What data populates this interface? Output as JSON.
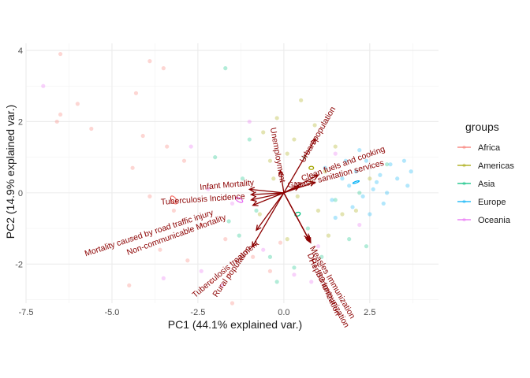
{
  "chart_data": {
    "type": "scatter",
    "subtype": "pca-biplot",
    "xlabel": "PC1 (44.1% explained var.)",
    "ylabel": "PC2 (14.9% explained var.)",
    "xlim": [
      -7.5,
      4.5
    ],
    "ylim": [
      -3.1,
      4.2
    ],
    "x_ticks": [
      -7.5,
      -5.0,
      -2.5,
      0.0,
      2.5
    ],
    "x_tick_labels": [
      "-7.5",
      "-5.0",
      "-2.5",
      "0.0",
      "2.5"
    ],
    "y_ticks": [
      -2,
      0,
      2,
      4
    ],
    "y_tick_labels": [
      "-2",
      "0",
      "2",
      "4"
    ],
    "grid": true,
    "legend": {
      "title": "groups",
      "placement": "right"
    },
    "colors": {
      "Africa": "#F8766D",
      "Americas": "#A3A500",
      "Asia": "#00BF7D",
      "Europe": "#00B0F6",
      "Oceania": "#E76BF3",
      "arrow": "#8B0000"
    },
    "series": [
      {
        "name": "Africa",
        "ellipse": {
          "cx": -3.2,
          "cy": -0.2,
          "rx": 5.8,
          "ry": 2.9,
          "angle_deg": 125
        },
        "points": [
          [
            -6.5,
            3.9
          ],
          [
            -3.9,
            3.7
          ],
          [
            -3.5,
            3.5
          ],
          [
            -6.5,
            2.2
          ],
          [
            -6.6,
            2.0
          ],
          [
            -6.0,
            2.5
          ],
          [
            -4.3,
            2.8
          ],
          [
            -5.6,
            1.8
          ],
          [
            -4.1,
            1.6
          ],
          [
            -4.4,
            0.7
          ],
          [
            -3.4,
            1.3
          ],
          [
            -2.9,
            0.9
          ],
          [
            -3.2,
            -0.5
          ],
          [
            -2.4,
            -0.9
          ],
          [
            -3.6,
            -1.6
          ],
          [
            -2.8,
            -1.9
          ],
          [
            -2.1,
            -2.5
          ],
          [
            -1.7,
            -1.3
          ],
          [
            -1.6,
            -2.3
          ],
          [
            -1.5,
            -3.1
          ],
          [
            -0.9,
            -1.8
          ],
          [
            -0.4,
            -2.2
          ],
          [
            -0.1,
            -1.4
          ],
          [
            -4.5,
            -2.6
          ],
          [
            -3.9,
            -0.1
          ]
        ]
      },
      {
        "name": "Americas",
        "ellipse": {
          "cx": 0.8,
          "cy": 0.7,
          "rx": 2.9,
          "ry": 2.0,
          "angle_deg": 0
        },
        "points": [
          [
            0.5,
            2.6
          ],
          [
            -0.2,
            2.1
          ],
          [
            -0.6,
            1.7
          ],
          [
            0.3,
            1.5
          ],
          [
            0.1,
            1.1
          ],
          [
            -0.4,
            0.9
          ],
          [
            0.9,
            1.9
          ],
          [
            1.5,
            1.3
          ],
          [
            1.2,
            0.6
          ],
          [
            0.8,
            0.3
          ],
          [
            -0.3,
            0.4
          ],
          [
            0.4,
            -0.1
          ],
          [
            1.0,
            -0.5
          ],
          [
            1.7,
            -0.6
          ],
          [
            1.3,
            -1.2
          ],
          [
            -0.7,
            -0.6
          ],
          [
            0.1,
            -1.3
          ],
          [
            2.1,
            -0.5
          ],
          [
            2.5,
            0.4
          ]
        ]
      },
      {
        "name": "Asia",
        "ellipse": {
          "cx": 0.4,
          "cy": -0.6,
          "rx": 3.5,
          "ry": 2.3,
          "angle_deg": 20
        },
        "points": [
          [
            -1.7,
            3.5
          ],
          [
            -2.0,
            1.0
          ],
          [
            -1.2,
            0.4
          ],
          [
            -1.6,
            -0.8
          ],
          [
            -0.8,
            -0.5
          ],
          [
            -0.4,
            -1.8
          ],
          [
            0.3,
            -2.1
          ],
          [
            1.1,
            -1.8
          ],
          [
            1.9,
            -1.3
          ],
          [
            2.2,
            0.0
          ],
          [
            3.0,
            0.8
          ],
          [
            1.5,
            -0.2
          ],
          [
            -0.2,
            -2.5
          ],
          [
            0.7,
            -1.0
          ],
          [
            2.4,
            -1.5
          ],
          [
            -1.0,
            1.5
          ],
          [
            0.6,
            1.0
          ],
          [
            -1.3,
            -1.2
          ]
        ]
      },
      {
        "name": "Europe",
        "ellipse": {
          "cx": 2.1,
          "cy": 0.3,
          "rx": 4.2,
          "ry": 1.0,
          "angle_deg": 20
        },
        "points": [
          [
            1.2,
            0.7
          ],
          [
            1.7,
            0.4
          ],
          [
            2.1,
            0.6
          ],
          [
            2.4,
            0.9
          ],
          [
            2.8,
            0.5
          ],
          [
            3.1,
            0.8
          ],
          [
            3.3,
            0.4
          ],
          [
            3.5,
            0.9
          ],
          [
            3.7,
            0.6
          ],
          [
            1.9,
            0.2
          ],
          [
            2.3,
            -0.1
          ],
          [
            2.6,
            0.1
          ],
          [
            3.0,
            0.0
          ],
          [
            2.0,
            -0.4
          ],
          [
            2.5,
            -0.6
          ],
          [
            2.9,
            -0.3
          ],
          [
            1.5,
            -0.7
          ],
          [
            1.8,
            0.9
          ],
          [
            2.2,
            1.2
          ],
          [
            3.6,
            0.2
          ],
          [
            1.4,
            -0.2
          ],
          [
            2.7,
            0.3
          ]
        ]
      },
      {
        "name": "Oceania",
        "ellipse": {
          "cx": -1.3,
          "cy": -0.2,
          "rx": 5.0,
          "ry": 2.3,
          "angle_deg": 150
        },
        "points": [
          [
            -7.0,
            3.0
          ],
          [
            -1.0,
            2.0
          ],
          [
            -2.7,
            1.3
          ],
          [
            -2.2,
            0.1
          ],
          [
            -1.5,
            -0.3
          ],
          [
            -0.6,
            -1.6
          ],
          [
            -3.5,
            -2.4
          ],
          [
            -2.4,
            -2.2
          ],
          [
            0.3,
            -2.3
          ],
          [
            1.0,
            -1.5
          ],
          [
            0.8,
            -2.5
          ],
          [
            2.2,
            -0.9
          ],
          [
            -1.8,
            -2.6
          ],
          [
            1.5,
            1.1
          ]
        ]
      }
    ],
    "arrows": [
      {
        "name": "Urban population",
        "x": 0.92,
        "y": 1.52
      },
      {
        "name": "Clean fuels and cooking",
        "x": 1.0,
        "y": 0.5
      },
      {
        "name": "Basic sanitation services",
        "x": 0.9,
        "y": 0.3
      },
      {
        "name": "GNI",
        "x": 0.45,
        "y": 0.18
      },
      {
        "name": "Unemployment",
        "x": -0.1,
        "y": 0.62
      },
      {
        "name": "Infant Mortality",
        "x": -1.0,
        "y": 0.1
      },
      {
        "name": "Tuberculosis Incidence",
        "x": -0.95,
        "y": -0.05
      },
      {
        "name": "Mortality caused by road traffic injury",
        "x": -0.95,
        "y": -0.2
      },
      {
        "name": "Non-communicable Mortality",
        "x": -0.9,
        "y": -0.35
      },
      {
        "name": "Tuberculosis treatment",
        "x": -0.8,
        "y": -1.05
      },
      {
        "name": "Rural population",
        "x": -0.92,
        "y": -1.52
      },
      {
        "name": "Measles Immunization",
        "x": 0.72,
        "y": -1.3
      },
      {
        "name": "DPT Immunization",
        "x": 0.75,
        "y": -1.35
      },
      {
        "name": "HepB3 Immunization",
        "x": 0.78,
        "y": -1.4
      }
    ],
    "arrow_labels": [
      {
        "text": "Urban population",
        "x": 1.05,
        "y": 1.6,
        "angle": -60
      },
      {
        "text": "Clean fuels and cooking",
        "x": 1.75,
        "y": 0.75,
        "angle": -20
      },
      {
        "text": "Basic sanitation services",
        "x": 1.65,
        "y": 0.45,
        "angle": -15
      },
      {
        "text": "GNI",
        "x": 0.32,
        "y": 0.15,
        "angle": 0
      },
      {
        "text": "Unemployment",
        "x": -0.25,
        "y": 1.05,
        "angle": 80
      },
      {
        "text": "Infant Mortality",
        "x": -1.65,
        "y": 0.15,
        "angle": -5
      },
      {
        "text": "Tuberculosis Incidence",
        "x": -2.35,
        "y": -0.25,
        "angle": -4
      },
      {
        "text": "Mortality caused by road traffic injury",
        "x": -3.9,
        "y": -1.2,
        "angle": -18
      },
      {
        "text": "Non-communicable Mortality",
        "x": -3.1,
        "y": -1.25,
        "angle": -20
      },
      {
        "text": "Tuberculosis treatment",
        "x": -1.65,
        "y": -2.2,
        "angle": -40
      },
      {
        "text": "Rural population",
        "x": -1.45,
        "y": -2.25,
        "angle": -55
      },
      {
        "text": "Measles Immunization",
        "x": 1.35,
        "y": -2.55,
        "angle": 60
      },
      {
        "text": "DPT Immunization",
        "x": 1.1,
        "y": -2.6,
        "angle": 65
      },
      {
        "text": "HepB3 Immunization",
        "x": 1.25,
        "y": -2.85,
        "angle": 62
      }
    ]
  }
}
